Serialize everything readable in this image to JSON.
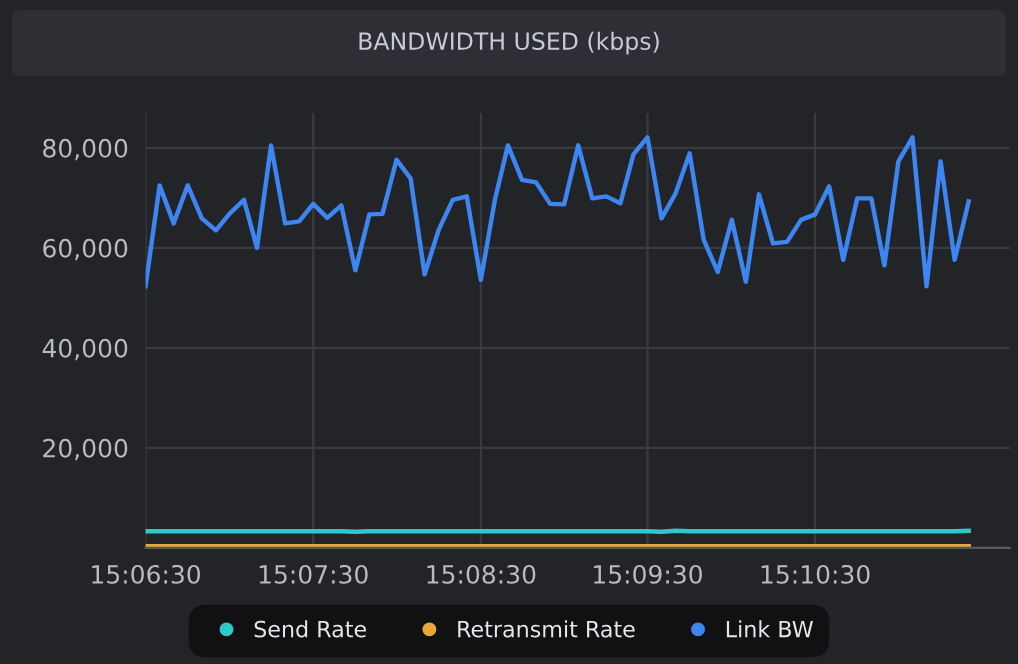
{
  "chart_data": {
    "type": "line",
    "title": "BANDWIDTH USED (kbps)",
    "x": [
      15.1083,
      15.1097,
      15.1111,
      15.1125,
      15.1139,
      15.1153,
      15.1167,
      15.1181,
      15.1194,
      15.1208,
      15.1222,
      15.1236,
      15.125,
      15.1264,
      15.1278,
      15.1292,
      15.1306,
      15.1319,
      15.1333,
      15.1347,
      15.1361,
      15.1375,
      15.1389,
      15.1403,
      15.1417,
      15.1431,
      15.1444,
      15.1458,
      15.1472,
      15.1486,
      15.15,
      15.1514,
      15.1528,
      15.1542,
      15.1556,
      15.1569,
      15.1583,
      15.1597,
      15.1611,
      15.1625,
      15.1639,
      15.1653,
      15.1667,
      15.1681,
      15.1694,
      15.1708,
      15.1722,
      15.1736,
      15.175,
      15.1764,
      15.1778,
      15.1792,
      15.1806,
      15.1819,
      15.1833,
      15.1847,
      15.1861,
      15.1875,
      15.1889,
      15.1903
    ],
    "series": [
      {
        "name": "Send Rate",
        "color": "#2ec8c8",
        "values": [
          3300,
          3300,
          3300,
          3300,
          3300,
          3300,
          3300,
          3300,
          3300,
          3300,
          3300,
          3300,
          3300,
          3300,
          3300,
          3200,
          3300,
          3300,
          3300,
          3300,
          3300,
          3300,
          3300,
          3300,
          3300,
          3300,
          3300,
          3300,
          3300,
          3300,
          3300,
          3300,
          3300,
          3300,
          3300,
          3300,
          3300,
          3200,
          3400,
          3300,
          3300,
          3300,
          3300,
          3300,
          3300,
          3300,
          3300,
          3300,
          3300,
          3300,
          3300,
          3300,
          3300,
          3300,
          3300,
          3300,
          3300,
          3300,
          3300,
          3400
        ]
      },
      {
        "name": "Retransmit Rate",
        "color": "#e8a93a",
        "values": [
          300,
          300,
          300,
          300,
          300,
          300,
          300,
          300,
          300,
          300,
          300,
          300,
          300,
          300,
          300,
          300,
          300,
          300,
          300,
          300,
          300,
          300,
          300,
          300,
          300,
          300,
          300,
          300,
          300,
          300,
          300,
          300,
          300,
          300,
          300,
          300,
          300,
          300,
          300,
          300,
          300,
          300,
          300,
          300,
          300,
          300,
          300,
          300,
          300,
          300,
          300,
          300,
          300,
          300,
          300,
          300,
          300,
          300,
          300,
          300
        ]
      },
      {
        "name": "Link BW",
        "color": "#3d85f0",
        "values": [
          52300,
          72500,
          64900,
          72500,
          65900,
          63500,
          66900,
          69600,
          60000,
          80500,
          64900,
          65300,
          68800,
          66000,
          68500,
          55500,
          66700,
          66800,
          77600,
          73900,
          54700,
          63600,
          69600,
          70300,
          53600,
          69600,
          80500,
          73600,
          73100,
          68800,
          68700,
          80500,
          69900,
          70300,
          68900,
          78700,
          82100,
          65900,
          70900,
          78900,
          61600,
          55200,
          65600,
          53200,
          70700,
          60900,
          61200,
          65600,
          66700,
          72300,
          57600,
          69900,
          69900,
          56500,
          77300,
          82100,
          52300,
          77300,
          57600,
          69300
        ]
      }
    ],
    "xlim": [
      15.1083,
      15.1944
    ],
    "xticks": [
      {
        "value": 15.1083,
        "label": "15:06:30"
      },
      {
        "value": 15.125,
        "label": "15:07:30"
      },
      {
        "value": 15.1417,
        "label": "15:08:30"
      },
      {
        "value": 15.1583,
        "label": "15:09:30"
      },
      {
        "value": 15.175,
        "label": "15:10:30"
      }
    ],
    "ylim": [
      0,
      87000
    ],
    "yticks": [
      {
        "value": 0,
        "label": null
      },
      {
        "value": 20000,
        "label": "20,000"
      },
      {
        "value": 40000,
        "label": "40,000"
      },
      {
        "value": 60000,
        "label": "60,000"
      },
      {
        "value": 80000,
        "label": "80,000"
      }
    ],
    "grid": true,
    "legend": "bottom",
    "marker": "none",
    "line_style": "solid"
  }
}
